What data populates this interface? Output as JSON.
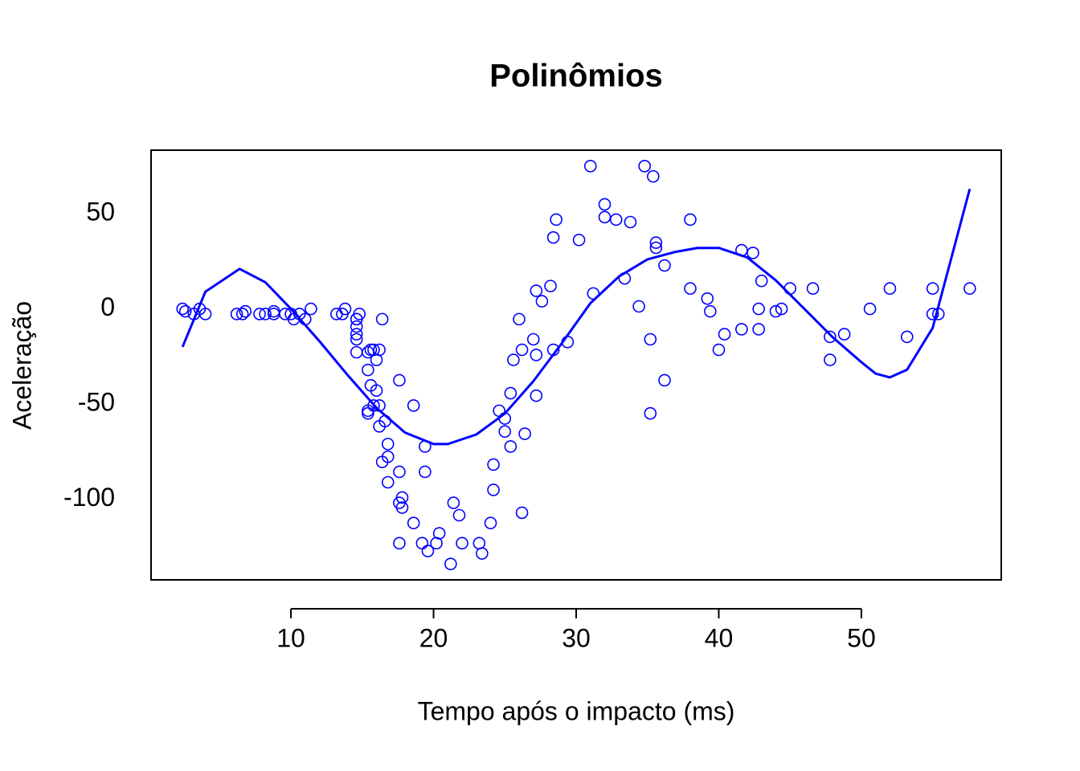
{
  "chart_data": {
    "type": "scatter",
    "title": "Polinômios",
    "x_label": "Tempo após o impacto (ms)",
    "y_label": "Aceleração",
    "xlim": [
      0.192,
      59.808
    ],
    "ylim": [
      -142.36,
      83.36
    ],
    "xticks": [
      10,
      20,
      30,
      40,
      50
    ],
    "yticks": [
      -100,
      -50,
      0,
      50
    ],
    "series": [
      {
        "type": "scatter",
        "color": "#0000ff",
        "x": [
          2.4,
          2.6,
          3.2,
          3.6,
          4.0,
          6.2,
          6.6,
          6.8,
          7.8,
          8.2,
          8.8,
          8.8,
          9.6,
          10.0,
          10.2,
          10.6,
          11.0,
          11.4,
          13.2,
          13.6,
          13.8,
          14.6,
          14.6,
          14.6,
          14.6,
          14.6,
          14.6,
          14.8,
          15.4,
          15.4,
          15.4,
          15.4,
          15.6,
          15.6,
          15.8,
          15.8,
          16.0,
          16.0,
          16.2,
          16.2,
          16.2,
          16.4,
          16.4,
          16.6,
          16.8,
          16.8,
          16.8,
          17.6,
          17.6,
          17.6,
          17.6,
          17.8,
          17.8,
          18.6,
          18.6,
          19.2,
          19.4,
          19.4,
          19.6,
          20.2,
          20.4,
          21.2,
          21.4,
          21.8,
          22.0,
          23.2,
          23.4,
          24.0,
          24.2,
          24.2,
          24.6,
          25.0,
          25.0,
          25.4,
          25.4,
          25.6,
          26.0,
          26.2,
          26.2,
          26.4,
          27.0,
          27.2,
          27.2,
          27.2,
          27.6,
          28.2,
          28.4,
          28.4,
          28.6,
          29.4,
          30.2,
          31.0,
          31.2,
          32.0,
          32.0,
          32.8,
          33.4,
          33.8,
          34.4,
          34.8,
          35.2,
          35.2,
          35.4,
          35.6,
          35.6,
          36.2,
          36.2,
          38.0,
          38.0,
          39.2,
          39.4,
          40.0,
          40.4,
          41.6,
          41.6,
          42.4,
          42.8,
          42.8,
          43.0,
          44.0,
          44.4,
          45.0,
          46.6,
          47.8,
          47.8,
          48.8,
          50.6,
          52.0,
          53.2,
          55.0,
          55.0,
          55.4,
          57.6
        ],
        "values": [
          0.0,
          -1.3,
          -2.7,
          0.0,
          -2.7,
          -2.7,
          -2.7,
          -1.3,
          -2.7,
          -2.7,
          -1.3,
          -2.7,
          -2.7,
          -2.7,
          -5.4,
          -2.7,
          -5.4,
          0.0,
          -2.7,
          -2.7,
          0.0,
          -13.3,
          -5.4,
          -5.4,
          -9.3,
          -16.0,
          -22.8,
          -2.7,
          -22.8,
          -32.1,
          -53.5,
          -54.9,
          -40.2,
          -21.5,
          -21.5,
          -50.8,
          -42.9,
          -26.8,
          -21.5,
          -50.8,
          -61.7,
          -5.4,
          -80.4,
          -59.0,
          -71.0,
          -91.1,
          -77.7,
          -37.5,
          -85.6,
          -123.1,
          -101.9,
          -99.1,
          -104.4,
          -112.5,
          -50.8,
          -123.1,
          -85.6,
          -72.3,
          -127.2,
          -123.1,
          -117.9,
          -134.0,
          -101.9,
          -108.4,
          -123.1,
          -123.1,
          -128.5,
          -112.5,
          -95.1,
          -81.8,
          -53.5,
          -64.4,
          -57.6,
          -72.3,
          -44.3,
          -26.8,
          -5.4,
          -107.1,
          -21.5,
          -65.6,
          -16.0,
          -45.6,
          -24.2,
          9.5,
          4.0,
          12.0,
          -21.5,
          37.5,
          46.9,
          -17.4,
          36.2,
          75.0,
          8.1,
          54.9,
          48.2,
          46.9,
          16.0,
          45.6,
          1.3,
          75.0,
          -16.0,
          -54.9,
          69.6,
          34.8,
          32.1,
          -37.5,
          22.8,
          46.9,
          10.7,
          5.4,
          -1.3,
          -21.5,
          -13.3,
          30.8,
          -10.7,
          29.4,
          0.0,
          -10.7,
          14.7,
          -1.3,
          0.0,
          10.7,
          10.7,
          -26.8,
          -14.7,
          -13.3,
          0.0,
          10.7,
          -14.7,
          -2.7,
          10.7,
          -2.7,
          10.7
        ]
      },
      {
        "type": "line",
        "color": "#0000ff",
        "x": [
          2.4,
          4.0,
          6.4,
          8.2,
          10.0,
          12.0,
          14.0,
          16.0,
          18.0,
          20.0,
          21.0,
          23.0,
          25.0,
          27.0,
          29.0,
          31.0,
          33.0,
          35.0,
          37.0,
          38.5,
          40.0,
          42.0,
          44.0,
          46.0,
          48.0,
          50.0,
          51.0,
          52.0,
          53.2,
          55.0,
          57.6
        ],
        "values": [
          -20,
          9,
          21,
          14,
          0,
          -17,
          -35,
          -52,
          -65,
          -71,
          -71,
          -66,
          -55,
          -38,
          -18,
          3,
          17,
          26,
          30,
          32,
          32,
          27,
          15,
          0,
          -15,
          -28,
          -34,
          -36,
          -32,
          -10,
          63
        ]
      }
    ]
  }
}
